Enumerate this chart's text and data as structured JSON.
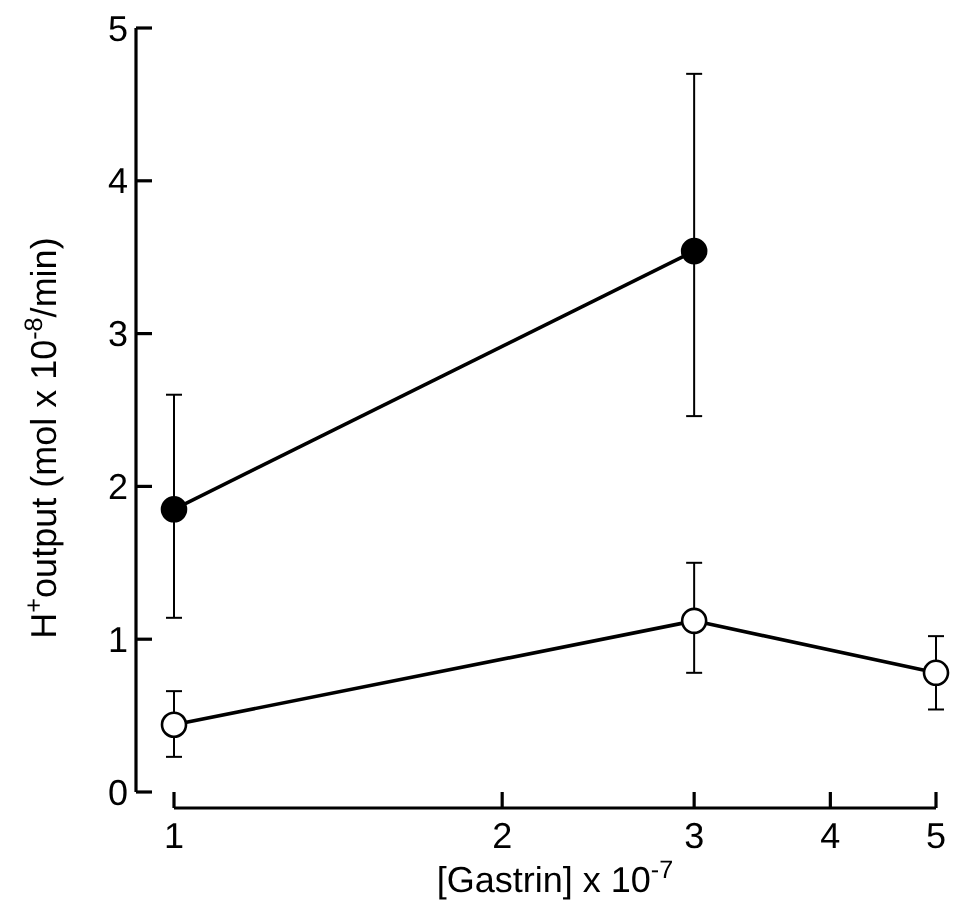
{
  "chart_data": {
    "type": "line",
    "xlabel": "[Gastrin] x 10$^{-7}$",
    "ylabel": "H$^{+}$output (mol x 10$^{-8}$/min)",
    "log": "x",
    "xlim": [
      1,
      5
    ],
    "xticks": [
      1,
      2,
      3,
      4,
      5
    ],
    "ylim": [
      0,
      5
    ],
    "yticks": [
      0,
      1,
      2,
      3,
      4,
      5
    ],
    "grid": false,
    "marker": "circle",
    "line_style": "solid",
    "series": [
      {
        "color": "#000000",
        "x": [
          1,
          3
        ],
        "values": [
          1.85,
          3.54
        ],
        "errors": [
          [
            1.14,
            2.6
          ],
          [
            2.46,
            4.7
          ]
        ]
      },
      {
        "color": "#ffffff",
        "x": [
          1,
          3,
          5
        ],
        "values": [
          0.44,
          1.12,
          0.78
        ],
        "errors": [
          [
            0.23,
            0.66
          ],
          [
            0.78,
            1.5
          ],
          [
            0.54,
            1.02
          ]
        ]
      }
    ]
  }
}
